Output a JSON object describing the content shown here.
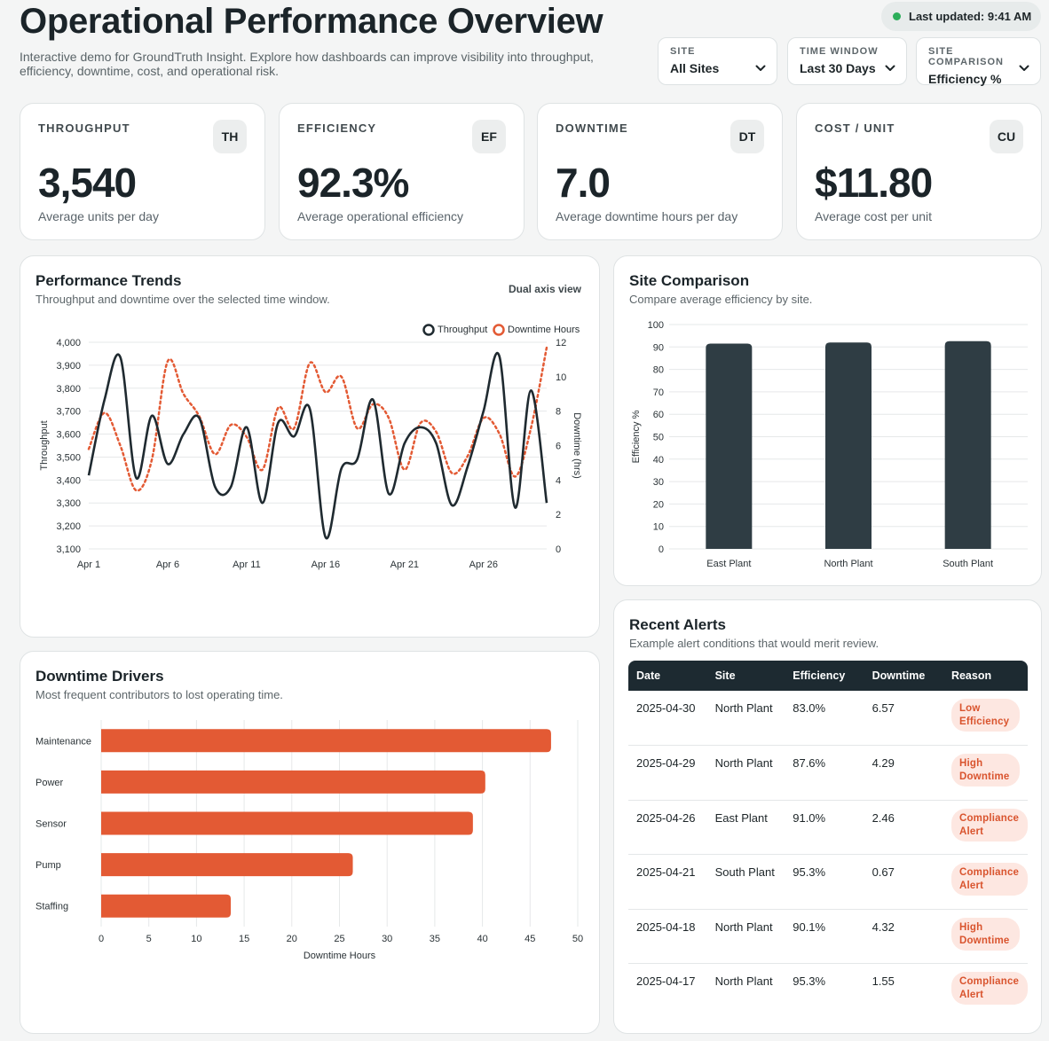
{
  "header": {
    "title": "Operational Performance Overview",
    "subtitle": "Interactive demo for GroundTruth Insight. Explore how dashboards can improve visibility into throughput, efficiency, downtime, cost, and operational risk.",
    "last_updated": "Last updated: 9:41 AM",
    "status_color": "#2cae5a"
  },
  "filters": {
    "site": {
      "label": "SITE",
      "value": "All Sites"
    },
    "time_window": {
      "label": "TIME WINDOW",
      "value": "Last 30 Days"
    },
    "site_comparison": {
      "label": "SITE COMPARISON",
      "value": "Efficiency %"
    }
  },
  "kpis": [
    {
      "label": "THROUGHPUT",
      "badge": "TH",
      "value": "3,540",
      "caption": "Average units per day"
    },
    {
      "label": "EFFICIENCY",
      "badge": "EF",
      "value": "92.3%",
      "caption": "Average operational efficiency"
    },
    {
      "label": "DOWNTIME",
      "badge": "DT",
      "value": "7.0",
      "caption": "Average downtime hours per day"
    },
    {
      "label": "COST / UNIT",
      "badge": "CU",
      "value": "$11.80",
      "caption": "Average cost per unit"
    }
  ],
  "trends": {
    "title": "Performance Trends",
    "subtitle": "Throughput and downtime over the selected time window.",
    "view_label": "Dual axis view"
  },
  "site_comparison": {
    "title": "Site Comparison",
    "subtitle": "Compare average efficiency by site."
  },
  "drivers": {
    "title": "Downtime Drivers",
    "subtitle": "Most frequent contributors to lost operating time."
  },
  "alerts": {
    "title": "Recent Alerts",
    "subtitle": "Example alert conditions that would merit review.",
    "columns": [
      "Date",
      "Site",
      "Efficiency",
      "Downtime",
      "Reason"
    ],
    "rows": [
      {
        "date": "2025-04-30",
        "site": "North Plant",
        "efficiency": "83.0%",
        "downtime": "6.57",
        "reason": "Low Efficiency"
      },
      {
        "date": "2025-04-29",
        "site": "North Plant",
        "efficiency": "87.6%",
        "downtime": "4.29",
        "reason": "High Downtime"
      },
      {
        "date": "2025-04-26",
        "site": "East Plant",
        "efficiency": "91.0%",
        "downtime": "2.46",
        "reason": "Compliance Alert"
      },
      {
        "date": "2025-04-21",
        "site": "South Plant",
        "efficiency": "95.3%",
        "downtime": "0.67",
        "reason": "Compliance Alert"
      },
      {
        "date": "2025-04-18",
        "site": "North Plant",
        "efficiency": "90.1%",
        "downtime": "4.32",
        "reason": "High Downtime"
      },
      {
        "date": "2025-04-17",
        "site": "North Plant",
        "efficiency": "95.3%",
        "downtime": "1.55",
        "reason": "Compliance Alert"
      }
    ]
  },
  "chart_data": [
    {
      "type": "line",
      "x": [
        "Apr 1",
        "Apr 2",
        "Apr 3",
        "Apr 4",
        "Apr 5",
        "Apr 6",
        "Apr 7",
        "Apr 8",
        "Apr 9",
        "Apr 10",
        "Apr 11",
        "Apr 12",
        "Apr 13",
        "Apr 14",
        "Apr 15",
        "Apr 16",
        "Apr 17",
        "Apr 18",
        "Apr 19",
        "Apr 20",
        "Apr 21",
        "Apr 22",
        "Apr 23",
        "Apr 24",
        "Apr 25",
        "Apr 26",
        "Apr 27",
        "Apr 28",
        "Apr 29",
        "Apr 30"
      ],
      "x_ticks": [
        "Apr 1",
        "Apr 6",
        "Apr 11",
        "Apr 16",
        "Apr 21",
        "Apr 26"
      ],
      "series": [
        {
          "name": "Throughput",
          "axis": "left",
          "color": "#1f2a30",
          "style": "solid",
          "values": [
            3420,
            3750,
            3935,
            3410,
            3680,
            3470,
            3600,
            3670,
            3370,
            3370,
            3630,
            3300,
            3650,
            3590,
            3710,
            3150,
            3450,
            3490,
            3750,
            3340,
            3560,
            3630,
            3560,
            3290,
            3460,
            3700,
            3940,
            3280,
            3790,
            3300
          ]
        },
        {
          "name": "Downtime Hours",
          "axis": "right",
          "color": "#e35a34",
          "style": "dotted",
          "values": [
            5.8,
            7.9,
            6.0,
            3.4,
            5.2,
            10.9,
            9.0,
            7.7,
            5.5,
            7.2,
            6.5,
            4.6,
            8.2,
            7.0,
            10.8,
            9.1,
            10.0,
            7.0,
            8.4,
            7.6,
            4.6,
            7.3,
            6.8,
            4.4,
            5.4,
            7.6,
            6.7,
            4.2,
            7.0,
            11.7
          ]
        }
      ],
      "xlabel": "",
      "ylabel": "Throughput",
      "y2label": "Downtime (hrs)",
      "ylim": [
        3100,
        4000
      ],
      "y2lim": [
        0,
        12
      ],
      "legend": "top-right"
    },
    {
      "type": "bar",
      "categories": [
        "East Plant",
        "North Plant",
        "South Plant"
      ],
      "values": [
        91.5,
        92.0,
        92.6
      ],
      "ylabel": "Efficiency %",
      "ylim": [
        0,
        100
      ],
      "color": "#2f3d44"
    },
    {
      "type": "bar",
      "orientation": "horizontal",
      "categories": [
        "Maintenance",
        "Power",
        "Sensor",
        "Pump",
        "Staffing"
      ],
      "values": [
        47.2,
        40.3,
        39.0,
        26.4,
        13.6
      ],
      "xlabel": "Downtime Hours",
      "xlim": [
        0,
        50
      ],
      "color": "#e35a34"
    }
  ]
}
